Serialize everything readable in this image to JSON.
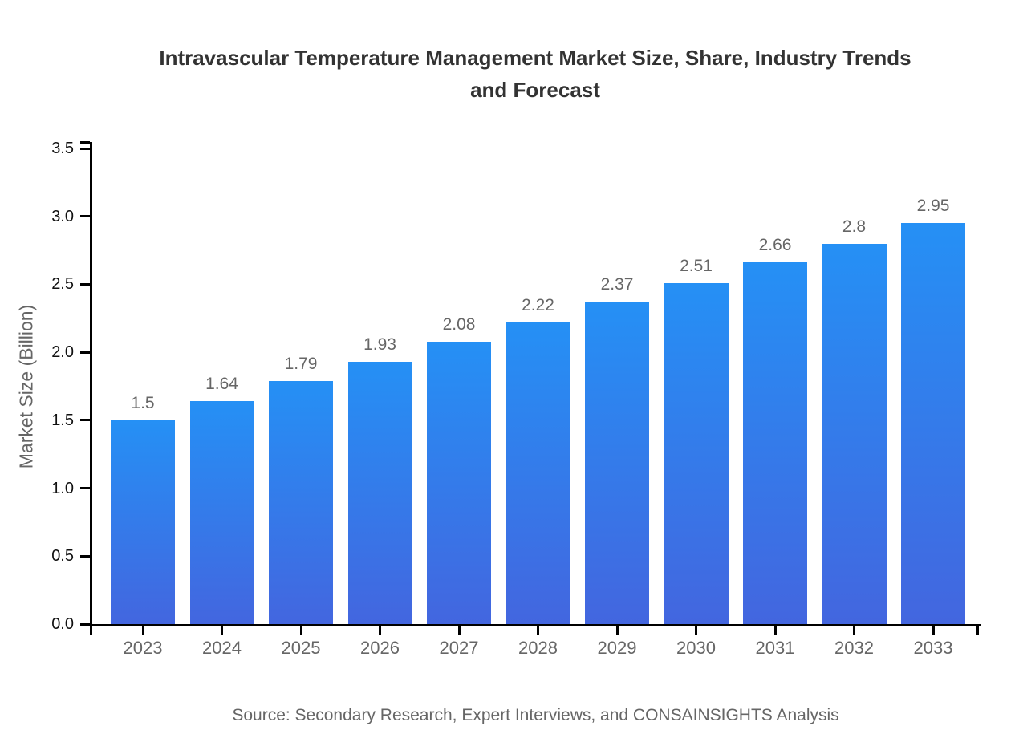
{
  "title": "Intravascular Temperature Management Market Size, Share, Industry Trends and Forecast",
  "source": "Source: Secondary Research, Expert Interviews, and CONSAINSIGHTS Analysis",
  "chart_data": {
    "type": "bar",
    "title": "Intravascular Temperature Management Market Size, Share, Industry Trends and Forecast",
    "categories": [
      "2023",
      "2024",
      "2025",
      "2026",
      "2027",
      "2028",
      "2029",
      "2030",
      "2031",
      "2032",
      "2033"
    ],
    "values": [
      1.5,
      1.64,
      1.79,
      1.93,
      2.08,
      2.22,
      2.37,
      2.51,
      2.66,
      2.8,
      2.95
    ],
    "value_labels": [
      "1.5",
      "1.64",
      "1.79",
      "1.93",
      "2.08",
      "2.22",
      "2.37",
      "2.51",
      "2.66",
      "2.8",
      "2.95"
    ],
    "xlabel": "",
    "ylabel": "Market Size (Billion)",
    "ylim": [
      0,
      3.5
    ],
    "yticks": [
      "0.0",
      "0.5",
      "1.0",
      "1.5",
      "2.0",
      "2.5",
      "3.0",
      "3.5"
    ],
    "grid": false,
    "legend": false,
    "colors": {
      "bar_gradient_top": "#2590f5",
      "bar_gradient_bottom": "#4366df",
      "axis": "#000000",
      "y_tick_label": "#111111",
      "x_tick_label": "#666666",
      "value_label": "#666666",
      "title": "#333333",
      "axis_title": "#666666",
      "source": "#666666",
      "background": "#ffffff"
    }
  }
}
